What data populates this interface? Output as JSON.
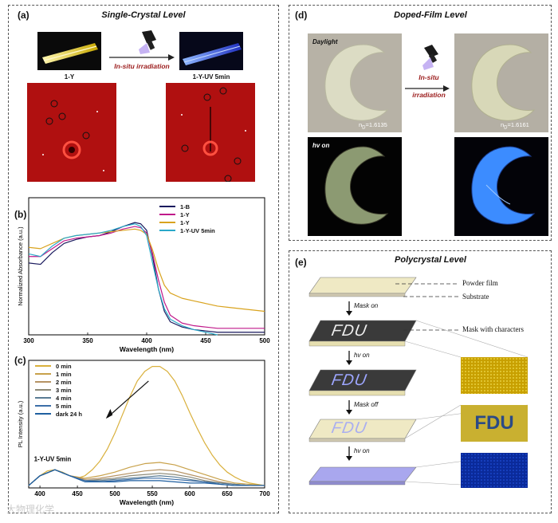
{
  "panel_a": {
    "label": "(a)",
    "title": "Single-Crystal Level",
    "cap_left": "1-Y",
    "cap_right": "1-Y-UV 5min",
    "arrow_text": "In-situ irradiation"
  },
  "panel_b": {
    "label": "(b)"
  },
  "panel_c": {
    "label": "(c)"
  },
  "panel_d": {
    "label": "(d)",
    "title": "Doped-Film Level",
    "daylight": "Daylight",
    "hv_on": "hv on",
    "arrow_line1": "In-situ",
    "arrow_line2": "irradiation",
    "n_left": "n",
    "n_left_sub": "D",
    "n_left_val": "=1.6135",
    "n_right": "n",
    "n_right_sub": "D",
    "n_right_val": "=1.6161"
  },
  "panel_e": {
    "label": "(e)",
    "title": "Polycrystal Level",
    "powder_film": "Powder film",
    "substrate": "Substrate",
    "mask_chars": "Mask with characters",
    "mask_on": "Mask on",
    "hv_on_1": "hv on",
    "mask_off": "Mask off",
    "hv_on_2": "hv on",
    "fdu": "FDU"
  },
  "watermark": "大物理化学",
  "colors": {
    "b_1B": "#1a1a5e",
    "b_1Y_magenta": "#c0198a",
    "b_1Y_orange": "#d9a31e",
    "b_1YUV": "#2aa8c9",
    "c_0": "#d9b03c",
    "c_dark": "#1f5fa0"
  },
  "chart_data": [
    {
      "type": "line",
      "xlabel": "Wavelength (nm)",
      "ylabel": "Normalized Absorbance (a.u.)",
      "xlim": [
        300,
        500
      ],
      "ylim": [
        0,
        1.05
      ],
      "xticks": [
        300,
        350,
        400,
        450,
        500
      ],
      "series": [
        {
          "name": "1-B",
          "x": [
            300,
            310,
            320,
            330,
            340,
            350,
            360,
            370,
            380,
            390,
            395,
            400,
            405,
            410,
            415,
            420,
            430,
            440,
            450,
            460,
            470,
            480,
            490,
            500
          ],
          "y": [
            0.55,
            0.54,
            0.63,
            0.7,
            0.73,
            0.75,
            0.76,
            0.79,
            0.83,
            0.86,
            0.85,
            0.8,
            0.6,
            0.35,
            0.18,
            0.1,
            0.06,
            0.04,
            0.03,
            0.02,
            0.02,
            0.02,
            0.02,
            0.02
          ]
        },
        {
          "name": "1-Y",
          "x": [
            300,
            310,
            320,
            330,
            340,
            350,
            360,
            370,
            380,
            390,
            395,
            400,
            405,
            410,
            415,
            420,
            430,
            440,
            450,
            460,
            470,
            480,
            490,
            500
          ],
          "y": [
            0.6,
            0.6,
            0.66,
            0.72,
            0.74,
            0.75,
            0.76,
            0.78,
            0.81,
            0.83,
            0.82,
            0.78,
            0.62,
            0.42,
            0.25,
            0.15,
            0.09,
            0.07,
            0.06,
            0.05,
            0.05,
            0.05,
            0.05,
            0.05
          ]
        },
        {
          "name": "1-Y",
          "x": [
            300,
            310,
            320,
            330,
            340,
            350,
            360,
            370,
            380,
            390,
            395,
            400,
            405,
            410,
            415,
            420,
            430,
            440,
            450,
            460,
            470,
            480,
            490,
            500
          ],
          "y": [
            0.67,
            0.66,
            0.7,
            0.74,
            0.76,
            0.77,
            0.78,
            0.79,
            0.8,
            0.81,
            0.8,
            0.77,
            0.65,
            0.5,
            0.38,
            0.32,
            0.28,
            0.26,
            0.24,
            0.22,
            0.21,
            0.2,
            0.19,
            0.18
          ]
        },
        {
          "name": "1-Y-UV 5min",
          "x": [
            300,
            310,
            320,
            330,
            340,
            350,
            360,
            370,
            380,
            390,
            395,
            400,
            405,
            410,
            415,
            420,
            430,
            440,
            450,
            460
          ],
          "y": [
            0.62,
            0.6,
            0.68,
            0.74,
            0.76,
            0.77,
            0.78,
            0.8,
            0.83,
            0.85,
            0.83,
            0.76,
            0.55,
            0.35,
            0.2,
            0.12,
            0.07,
            0.04,
            0.02,
            0.0
          ]
        }
      ]
    },
    {
      "type": "line",
      "xlabel": "Wavelength (nm)",
      "ylabel": "PL Intensity (a.u.)",
      "xlim": [
        385,
        700
      ],
      "ylim": [
        0,
        1.05
      ],
      "xticks": [
        400,
        450,
        500,
        550,
        600,
        650,
        700
      ],
      "annotations": [
        "1-Y",
        "1-Y-UV 5min"
      ],
      "series": [
        {
          "name": "0 min",
          "x": [
            385,
            400,
            410,
            420,
            430,
            440,
            450,
            460,
            470,
            480,
            490,
            500,
            510,
            520,
            530,
            540,
            550,
            560,
            570,
            580,
            590,
            600,
            610,
            620,
            630,
            640,
            650,
            660,
            670,
            680,
            690,
            700
          ],
          "y": [
            0.02,
            0.1,
            0.14,
            0.15,
            0.13,
            0.1,
            0.08,
            0.1,
            0.15,
            0.22,
            0.32,
            0.45,
            0.6,
            0.75,
            0.88,
            0.96,
            1.0,
            1.0,
            0.96,
            0.88,
            0.76,
            0.62,
            0.49,
            0.37,
            0.27,
            0.19,
            0.13,
            0.09,
            0.06,
            0.04,
            0.03,
            0.02
          ]
        },
        {
          "name": "1 min",
          "x": [
            385,
            400,
            420,
            440,
            460,
            480,
            500,
            520,
            540,
            560,
            580,
            600,
            620,
            640,
            660,
            680,
            700
          ],
          "y": [
            0.02,
            0.1,
            0.15,
            0.1,
            0.08,
            0.1,
            0.13,
            0.17,
            0.2,
            0.21,
            0.19,
            0.15,
            0.11,
            0.07,
            0.04,
            0.03,
            0.02
          ]
        },
        {
          "name": "2 min",
          "x": [
            385,
            400,
            420,
            440,
            460,
            480,
            500,
            520,
            540,
            560,
            580,
            600,
            620,
            640,
            660,
            680,
            700
          ],
          "y": [
            0.02,
            0.1,
            0.15,
            0.1,
            0.07,
            0.08,
            0.1,
            0.12,
            0.14,
            0.15,
            0.14,
            0.11,
            0.08,
            0.05,
            0.03,
            0.02,
            0.02
          ]
        },
        {
          "name": "3 min",
          "x": [
            385,
            400,
            420,
            440,
            460,
            480,
            500,
            520,
            540,
            560,
            580,
            600,
            620,
            640,
            660,
            680,
            700
          ],
          "y": [
            0.02,
            0.1,
            0.15,
            0.1,
            0.06,
            0.07,
            0.08,
            0.1,
            0.11,
            0.12,
            0.11,
            0.09,
            0.06,
            0.04,
            0.03,
            0.02,
            0.02
          ]
        },
        {
          "name": "4 min",
          "x": [
            385,
            400,
            420,
            440,
            460,
            480,
            500,
            520,
            540,
            560,
            580,
            600,
            620,
            640,
            660,
            680,
            700
          ],
          "y": [
            0.02,
            0.1,
            0.15,
            0.1,
            0.06,
            0.06,
            0.07,
            0.08,
            0.09,
            0.1,
            0.09,
            0.07,
            0.05,
            0.04,
            0.03,
            0.02,
            0.02
          ]
        },
        {
          "name": "5 min",
          "x": [
            385,
            400,
            420,
            440,
            460,
            480,
            500,
            520,
            540,
            560,
            580,
            600,
            620,
            640,
            660,
            680,
            700
          ],
          "y": [
            0.02,
            0.1,
            0.15,
            0.1,
            0.06,
            0.05,
            0.06,
            0.07,
            0.08,
            0.08,
            0.07,
            0.06,
            0.05,
            0.03,
            0.02,
            0.02,
            0.02
          ]
        },
        {
          "name": "dark 24 h",
          "x": [
            385,
            400,
            420,
            440,
            460,
            480,
            500,
            520,
            540,
            560,
            580,
            600,
            620,
            640,
            660,
            680,
            700
          ],
          "y": [
            0.02,
            0.1,
            0.15,
            0.1,
            0.05,
            0.05,
            0.05,
            0.06,
            0.06,
            0.06,
            0.05,
            0.04,
            0.04,
            0.03,
            0.02,
            0.02,
            0.02
          ]
        }
      ]
    }
  ]
}
